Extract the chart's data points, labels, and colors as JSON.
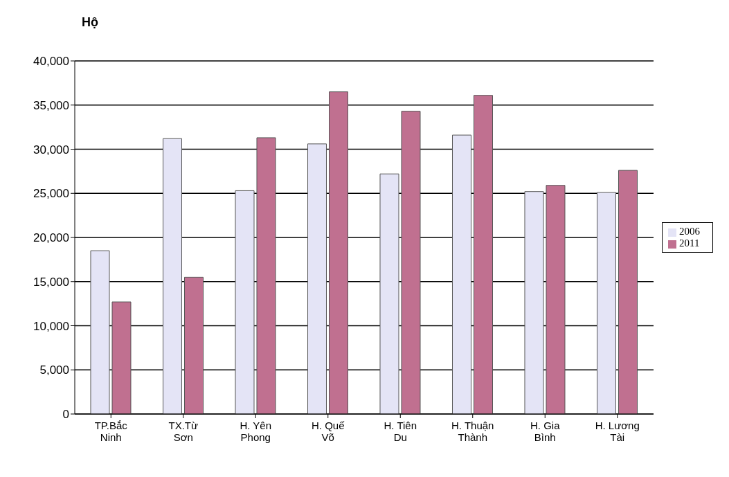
{
  "chart_data": {
    "type": "bar",
    "ylabel": "Hộ",
    "categories": [
      "TP.Bắc Ninh",
      "TX.Từ Sơn",
      "H. Yên Phong",
      "H. Quế Võ",
      "H. Tiên Du",
      "H. Thuận Thành",
      "H. Gia Bình",
      "H. Lương Tài"
    ],
    "series": [
      {
        "name": "2006",
        "color": "#e4e4f6",
        "values": [
          18500,
          31200,
          25300,
          30600,
          27200,
          31600,
          25200,
          25100
        ]
      },
      {
        "name": "2011",
        "color": "#c07090",
        "values": [
          12700,
          15500,
          31300,
          36500,
          34300,
          36100,
          25900,
          27600
        ]
      }
    ],
    "ylim": [
      0,
      40000
    ],
    "yticks": [
      0,
      {
        "value": 5000,
        "label": "5,000"
      },
      {
        "value": 10000,
        "label": "10,000"
      },
      {
        "value": 15000,
        "label": "15,000"
      },
      {
        "value": 20000,
        "label": "20,000"
      },
      {
        "value": 25000,
        "label": "25,000"
      },
      {
        "value": 30000,
        "label": "30,000"
      },
      {
        "value": 35000,
        "label": "35,000"
      },
      {
        "value": 40000,
        "label": "40,000"
      }
    ],
    "grid": "y",
    "legend": "right"
  }
}
